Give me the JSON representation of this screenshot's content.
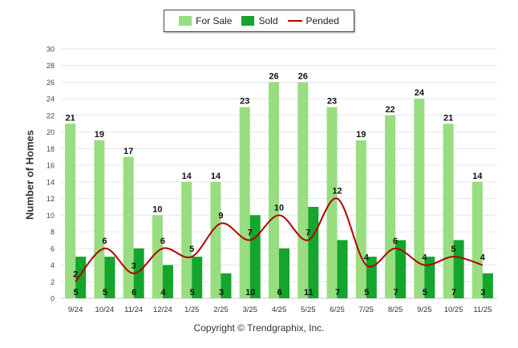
{
  "chart_data": {
    "type": "bar",
    "categories": [
      "9/24",
      "10/24",
      "11/24",
      "12/24",
      "1/25",
      "2/25",
      "3/25",
      "4/25",
      "5/25",
      "6/25",
      "7/25",
      "8/25",
      "9/25",
      "10/25",
      "11/25"
    ],
    "series": [
      {
        "name": "For Sale",
        "type": "bar",
        "color": "#98dd80",
        "values": [
          21,
          19,
          17,
          10,
          14,
          14,
          23,
          26,
          26,
          23,
          19,
          22,
          24,
          21,
          14
        ]
      },
      {
        "name": "Sold",
        "type": "bar",
        "color": "#13a52c",
        "values": [
          5,
          5,
          6,
          4,
          5,
          3,
          10,
          6,
          11,
          7,
          5,
          7,
          5,
          7,
          3
        ]
      },
      {
        "name": "Pended",
        "type": "line",
        "color": "#b30000",
        "values": [
          2,
          6,
          3,
          6,
          5,
          9,
          7,
          10,
          7,
          12,
          4,
          6,
          4,
          5,
          4
        ]
      }
    ],
    "ylabel": "Number of Homes",
    "ylim": [
      0,
      30
    ],
    "yticks": [
      0,
      2,
      4,
      6,
      8,
      10,
      12,
      14,
      16,
      18,
      20,
      22,
      24,
      26,
      28,
      30
    ],
    "grid": true,
    "legend": "top-center"
  },
  "footer": {
    "copyright": "Copyright © Trendgraphix, Inc."
  }
}
